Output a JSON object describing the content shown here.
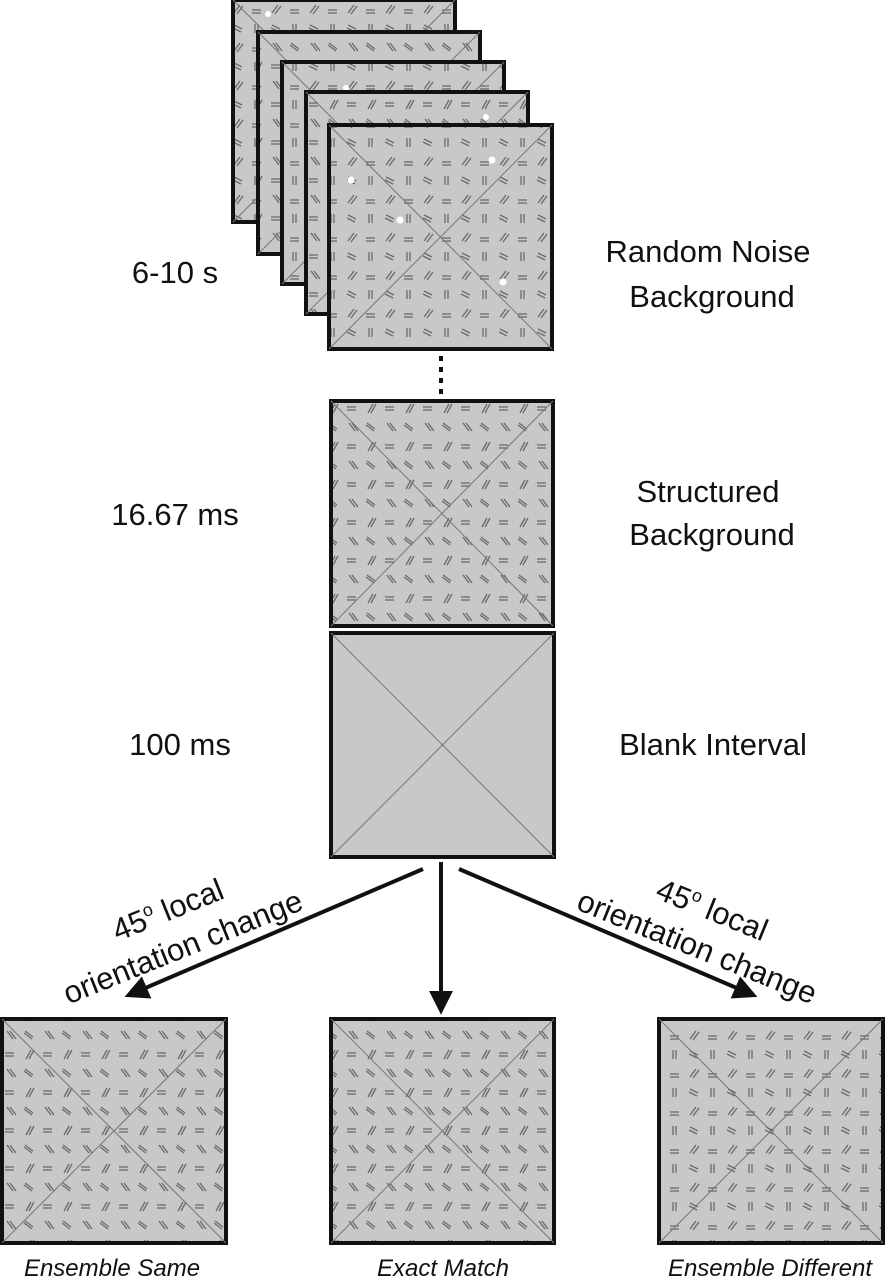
{
  "stages": [
    {
      "duration": "6-10 s",
      "name_line1": "Random Noise",
      "name_line2": "Background"
    },
    {
      "duration": "16.67 ms",
      "name_line1": "Structured",
      "name_line2": "Background"
    },
    {
      "duration": "100 ms",
      "name_line1": "Blank Interval",
      "name_line2": ""
    }
  ],
  "branches": {
    "left": {
      "line1_number": "45",
      "line1_degree": "o",
      "line1_rest": " local",
      "line2": "orientation change"
    },
    "right": {
      "line1_number": "45",
      "line1_degree": "o",
      "line1_rest": " local",
      "line2": "orientation change"
    }
  },
  "outcomes": [
    {
      "caption": "Ensemble Same"
    },
    {
      "caption": "Exact Match"
    },
    {
      "caption": "Ensemble Different"
    }
  ],
  "colors": {
    "panel_fill": "#c8c8c8",
    "panel_border": "#111111",
    "stroke": "#111111"
  }
}
